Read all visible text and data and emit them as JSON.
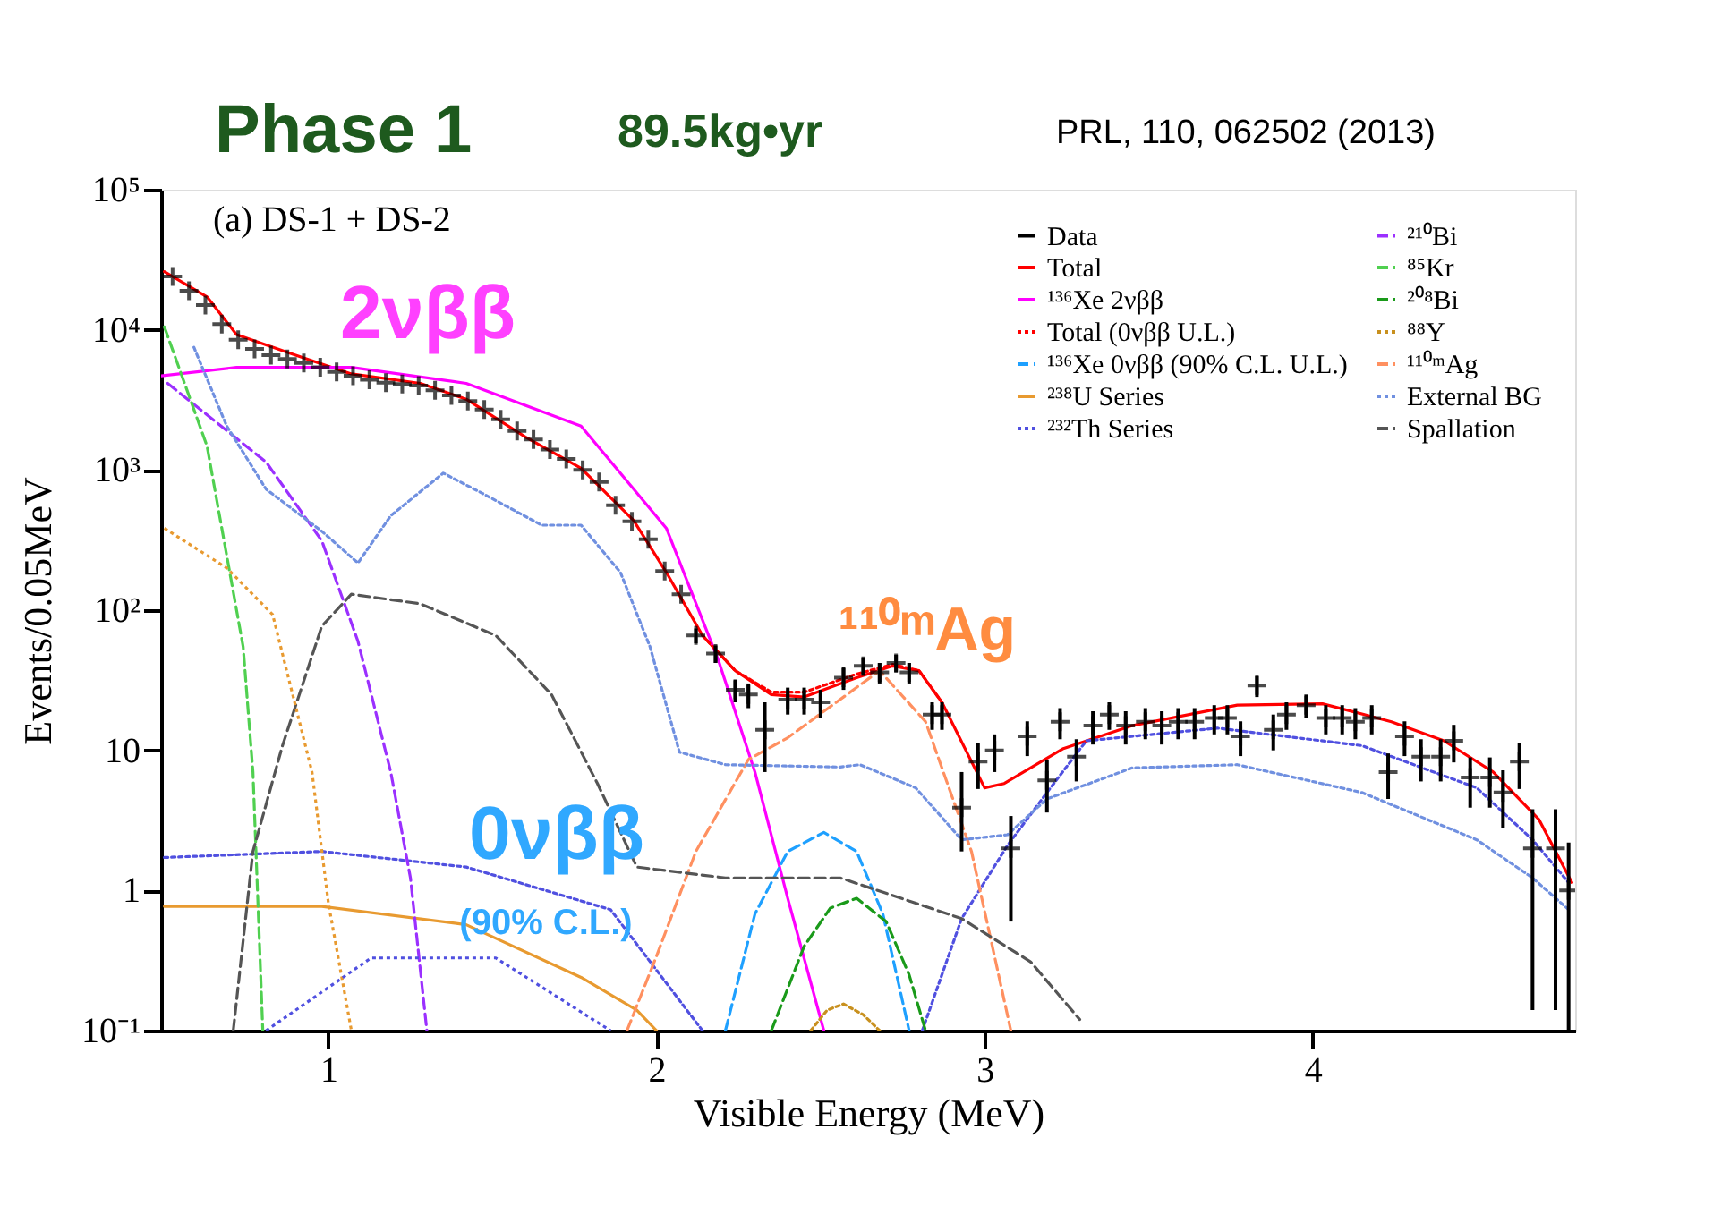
{
  "chart_data": {
    "type": "line",
    "title": "Phase 1",
    "subtitle": "89.5kg•yr",
    "xlabel": "Visible Energy (MeV)",
    "ylabel": "Events/0.05MeV",
    "annotations": [
      "(a) DS-1 + DS-2",
      "2νββ",
      "¹¹⁰ᵐAg",
      "0νββ",
      "(90% C.L.)",
      "PRL, 110, 062502 (2013)"
    ],
    "xlim": [
      0.49,
      4.8
    ],
    "xticks": [
      1,
      2,
      3,
      4
    ],
    "ylim": [
      0.1,
      100000
    ],
    "yticks": [
      {
        "value": 0.1,
        "label": "10⁻¹"
      },
      1,
      10,
      {
        "value": 100,
        "label": "10²"
      },
      {
        "value": 1000,
        "label": "10³"
      },
      {
        "value": 10000,
        "label": "10⁴"
      },
      {
        "value": 100000,
        "label": "10⁵"
      }
    ],
    "log": "y",
    "grid": false,
    "legend": "top right",
    "series": [
      {
        "name": "Data",
        "type": "scatter",
        "marker": "cross",
        "line_style": "solid",
        "color": "#000000",
        "x": [
          0.525,
          0.575,
          0.625,
          0.675,
          0.725,
          0.775,
          0.825,
          0.875,
          0.925,
          0.975,
          1.025,
          1.075,
          1.125,
          1.175,
          1.225,
          1.275,
          1.325,
          1.375,
          1.425,
          1.475,
          1.525,
          1.575,
          1.625,
          1.675,
          1.725,
          1.775,
          1.825,
          1.875,
          1.925,
          1.975,
          2.025,
          2.075,
          2.12,
          2.18,
          2.24,
          2.28,
          2.33,
          2.4,
          2.45,
          2.5,
          2.57,
          2.63,
          2.68,
          2.73,
          2.77,
          2.84,
          2.87,
          2.93,
          2.98,
          3.03,
          3.08,
          3.13,
          3.19,
          3.23,
          3.28,
          3.33,
          3.38,
          3.43,
          3.49,
          3.54,
          3.59,
          3.64,
          3.7,
          3.74,
          3.78,
          3.83,
          3.88,
          3.92,
          3.98,
          4.04,
          4.09,
          4.13,
          4.18,
          4.23,
          4.28,
          4.33,
          4.39,
          4.43,
          4.48,
          4.54,
          4.58,
          4.63,
          4.67,
          4.74,
          4.78
        ],
        "values": [
          24000,
          19000,
          15000,
          11000,
          8500,
          7300,
          6600,
          6200,
          5800,
          5400,
          5000,
          4700,
          4400,
          4200,
          4100,
          4000,
          3700,
          3400,
          3100,
          2700,
          2300,
          1900,
          1650,
          1400,
          1200,
          1000,
          820,
          560,
          430,
          320,
          190,
          130,
          66,
          49,
          27,
          25,
          14,
          23,
          23,
          22,
          33,
          40,
          36,
          42,
          36,
          18,
          18,
          3.9,
          8.3,
          10,
          2,
          12.6,
          6.1,
          16,
          9,
          15,
          18,
          15,
          16,
          15,
          16,
          16,
          17,
          17,
          12.6,
          29,
          14,
          18,
          21,
          17,
          17,
          16,
          17,
          7,
          12.6,
          9,
          9,
          11.7,
          6.4,
          6.4,
          5,
          8.3,
          2,
          2,
          1
        ],
        "errors": [
          null,
          null,
          null,
          null,
          null,
          null,
          null,
          null,
          null,
          null,
          null,
          null,
          null,
          null,
          null,
          null,
          null,
          null,
          null,
          null,
          null,
          null,
          null,
          null,
          null,
          null,
          null,
          null,
          null,
          null,
          null,
          null,
          8,
          7,
          5,
          5,
          [
            7,
            22
          ],
          5,
          5,
          5,
          6,
          6,
          6,
          6,
          6,
          4,
          4,
          [
            1.9,
            7
          ],
          3,
          3,
          [
            0.6,
            3.4
          ],
          3.5,
          2.5,
          4,
          3,
          4,
          4,
          4,
          4,
          4,
          4,
          4,
          4,
          4,
          3.5,
          5,
          4,
          4,
          4,
          4,
          4,
          4,
          4,
          2.5,
          3.5,
          3,
          3,
          3.5,
          2.5,
          2.5,
          2.2,
          3,
          [
            0.14,
            3.8
          ],
          [
            0.14,
            3.8
          ],
          [
            0.1,
            2.2
          ]
        ]
      },
      {
        "name": "Total",
        "color": "#ff0000",
        "line_style": "solid",
        "x": [
          0.5,
          0.63,
          0.72,
          0.9,
          1.07,
          1.28,
          1.42,
          1.6,
          1.77,
          1.93,
          2.03,
          2.14,
          2.24,
          2.35,
          2.45,
          2.61,
          2.72,
          2.8,
          2.87,
          3.0,
          3.06,
          3.24,
          3.45,
          3.77,
          4.03,
          4.24,
          4.4,
          4.55,
          4.69,
          4.79
        ],
        "values": [
          26000,
          17200,
          9250,
          6600,
          4850,
          4150,
          3200,
          1720,
          1030,
          437,
          186,
          66,
          37,
          25,
          24,
          33,
          40,
          37,
          22,
          5.4,
          5.8,
          10.3,
          15,
          21,
          21.5,
          16,
          11.7,
          7.0,
          3.2,
          1.14
        ]
      },
      {
        "name": "¹³⁶Xe 2νββ",
        "color": "#ff00ff",
        "line_style": "solid",
        "x": [
          0.49,
          0.72,
          1.07,
          1.42,
          1.77,
          2.03,
          2.19,
          2.3,
          2.4,
          2.51
        ],
        "values": [
          4700,
          5400,
          5400,
          4150,
          2060,
          384,
          43,
          7.0,
          0.88,
          0.1
        ]
      },
      {
        "name": "Total (0νββ U.L.)",
        "color": "#ff0000",
        "line_style": "dotted",
        "x": [
          2.14,
          2.24,
          2.35,
          2.45,
          2.61,
          2.72,
          2.8,
          2.87
        ],
        "values": [
          66,
          37,
          26,
          26,
          35,
          41,
          37,
          22
        ]
      },
      {
        "name": "¹³⁶Xe 0νββ (90% C.L. U.L.)",
        "color": "#1ea0ff",
        "line_style": "dashed",
        "x": [
          2.21,
          2.3,
          2.4,
          2.51,
          2.61,
          2.69,
          2.77
        ],
        "values": [
          0.1,
          0.68,
          1.9,
          2.6,
          1.9,
          0.68,
          0.1
        ]
      },
      {
        "name": "²³⁸U Series",
        "color": "#e89a30",
        "line_style": "solid",
        "x": [
          0.5,
          0.98,
          1.42,
          1.77,
          1.94,
          2.0
        ],
        "values": [
          0.77,
          0.77,
          0.57,
          0.24,
          0.14,
          0.1
        ]
      },
      {
        "name": "²³²Th Series",
        "color": "#5050e0",
        "line_style": "dotted",
        "x": [
          0.5,
          0.98,
          1.42,
          1.86,
          2.14,
          2.5,
          2.81,
          2.93,
          3.07,
          3.19,
          3.31,
          3.71,
          4.15,
          4.5,
          4.67,
          4.78
        ],
        "values": [
          1.72,
          1.9,
          1.47,
          0.73,
          0.1,
          null,
          0.1,
          0.63,
          2.1,
          5.0,
          11.7,
          14.4,
          10.8,
          5.4,
          2.3,
          1.14
        ]
      },
      {
        "name": "²¹⁰Bi",
        "color": "#9b30ff",
        "line_style": "dashed",
        "x": [
          0.51,
          0.81,
          0.98,
          1.09,
          1.19,
          1.25,
          1.3
        ],
        "values": [
          4150,
          1140,
          312,
          60,
          7,
          1.23,
          0.1
        ]
      },
      {
        "name": "⁸⁵Kr",
        "color": "#50d050",
        "line_style": "dashed",
        "x": [
          0.5,
          0.63,
          0.74,
          0.77,
          0.8
        ],
        "values": [
          10500,
          1480,
          55,
          7,
          0.1
        ]
      },
      {
        "name": "²⁰⁸Bi",
        "color": "#1a9a1a",
        "line_style": "dashed",
        "x": [
          2.35,
          2.45,
          2.53,
          2.61,
          2.7,
          2.77,
          2.82
        ],
        "values": [
          0.1,
          0.4,
          0.75,
          0.88,
          0.6,
          0.25,
          0.1
        ]
      },
      {
        "name": "⁸⁸Y",
        "color": "#c8901e",
        "line_style": "dotted",
        "x": [
          2.47,
          2.52,
          2.57,
          2.63,
          2.68
        ],
        "values": [
          0.1,
          0.14,
          0.155,
          0.13,
          0.1
        ]
      },
      {
        "name": "¹¹⁰ᵐAg",
        "color": "#ff9060",
        "line_style": "dashed",
        "x": [
          1.91,
          2.0,
          2.12,
          2.28,
          2.4,
          2.68,
          2.82,
          2.96,
          3.08
        ],
        "values": [
          0.1,
          0.34,
          1.9,
          8.6,
          12.3,
          37,
          16,
          1.9,
          0.1
        ]
      },
      {
        "name": "External BG",
        "color": "#7090e0",
        "line_style": "dotted",
        "x": [
          0.59,
          0.69,
          0.81,
          0.98,
          1.09,
          1.19,
          1.35,
          1.47,
          1.65,
          1.77,
          1.89,
          1.98,
          2.07,
          2.21,
          2.56,
          2.62,
          2.79,
          2.93,
          3.07,
          3.19,
          3.45,
          3.77,
          4.15,
          4.5,
          4.67,
          4.78
        ],
        "values": [
          7500,
          2060,
          730,
          365,
          217,
          472,
          950,
          680,
          404,
          404,
          186,
          55,
          9.7,
          7.9,
          7.6,
          7.9,
          5.4,
          2.3,
          2.5,
          4.5,
          7.5,
          7.9,
          5.0,
          2.3,
          1.23,
          0.73
        ]
      },
      {
        "name": "Spallation",
        "color": "#555555",
        "line_style": "dashed",
        "x": [
          0.71,
          0.77,
          0.86,
          0.98,
          1.07,
          1.28,
          1.51,
          1.68,
          1.82,
          1.94,
          2.21,
          2.56,
          2.93,
          3.14,
          3.29
        ],
        "values": [
          0.1,
          1.9,
          10.8,
          77,
          130,
          111,
          66,
          25,
          5.8,
          1.47,
          1.23,
          1.23,
          0.63,
          0.31,
          0.12
        ]
      },
      {
        "color": "#e89a30",
        "line_style": "dotted",
        "x": [
          0.5,
          0.69,
          0.83,
          0.95,
          1.0,
          1.07
        ],
        "values": [
          384,
          200,
          93,
          7,
          0.81,
          0.1
        ]
      },
      {
        "color": "#5050e0",
        "line_style": "dotted",
        "x": [
          0.81,
          1.13,
          1.51,
          1.86
        ],
        "values": [
          0.1,
          0.33,
          0.33,
          0.1
        ]
      }
    ]
  }
}
